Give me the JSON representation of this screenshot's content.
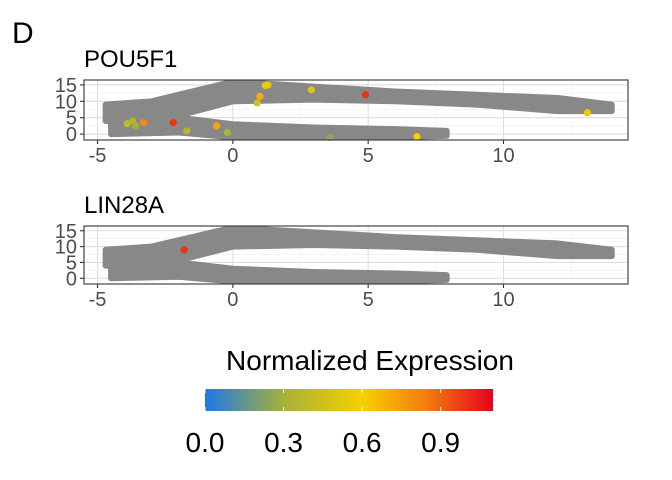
{
  "figure": {
    "panel_letter": "D"
  },
  "chart_data": [
    {
      "type": "scatter",
      "title": "POU5F1",
      "xlabel": "",
      "ylabel": "",
      "xlim": [
        -5.5,
        14.6
      ],
      "ylim": [
        -1.8,
        16.5
      ],
      "x_ticks": [
        -5,
        0,
        5,
        10
      ],
      "y_ticks": [
        0,
        5,
        10,
        15
      ],
      "x_tick_labels": [
        "-5",
        "0",
        "5",
        "10"
      ],
      "y_tick_labels": [
        "0",
        "5",
        "10",
        "15"
      ],
      "grid": true,
      "background_color": "#888888",
      "background_bands": [
        {
          "x": [
            -4.7,
            -3.0,
            0.0,
            3.0,
            6.0,
            9.0,
            12.0,
            14.0
          ],
          "y_low": [
            4.0,
            3.5,
            10.0,
            10.5,
            10.0,
            9.0,
            7.0,
            7.0
          ],
          "y_high": [
            9.0,
            10.0,
            16.0,
            14.5,
            13.0,
            12.0,
            11.0,
            9.0
          ]
        },
        {
          "x": [
            -4.5,
            -2.0,
            0.0,
            3.0,
            6.0,
            7.9
          ],
          "y_low": [
            0.0,
            0.5,
            -1.0,
            -1.2,
            -1.0,
            -0.5
          ],
          "y_high": [
            6.0,
            5.0,
            3.0,
            2.0,
            1.5,
            1.0
          ]
        }
      ],
      "points": [
        {
          "x": 1.3,
          "y": 15.0,
          "value": 0.65
        },
        {
          "x": 1.2,
          "y": 14.8,
          "value": 0.55
        },
        {
          "x": 2.9,
          "y": 13.5,
          "value": 0.5
        },
        {
          "x": 4.9,
          "y": 12.0,
          "value": 1.0
        },
        {
          "x": 1.0,
          "y": 11.5,
          "value": 0.7
        },
        {
          "x": 0.9,
          "y": 9.5,
          "value": 0.45
        },
        {
          "x": 13.1,
          "y": 6.5,
          "value": 0.55
        },
        {
          "x": -2.2,
          "y": 3.5,
          "value": 1.0
        },
        {
          "x": -3.3,
          "y": 3.5,
          "value": 0.8
        },
        {
          "x": -3.7,
          "y": 4.0,
          "value": 0.35
        },
        {
          "x": -3.6,
          "y": 2.5,
          "value": 0.3
        },
        {
          "x": -3.9,
          "y": 3.2,
          "value": 0.4
        },
        {
          "x": -0.6,
          "y": 2.5,
          "value": 0.72
        },
        {
          "x": -1.7,
          "y": 1.0,
          "value": 0.35
        },
        {
          "x": -0.2,
          "y": 0.5,
          "value": 0.32
        },
        {
          "x": 6.8,
          "y": -0.8,
          "value": 0.6
        },
        {
          "x": 3.6,
          "y": -1.0,
          "value": 0.25
        }
      ]
    },
    {
      "type": "scatter",
      "title": "LIN28A",
      "xlabel": "",
      "ylabel": "",
      "xlim": [
        -5.5,
        14.6
      ],
      "ylim": [
        -1.8,
        16.5
      ],
      "x_ticks": [
        -5,
        0,
        5,
        10
      ],
      "y_ticks": [
        0,
        5,
        10,
        15
      ],
      "x_tick_labels": [
        "-5",
        "0",
        "5",
        "10"
      ],
      "y_tick_labels": [
        "0",
        "5",
        "10",
        "15"
      ],
      "grid": true,
      "background_color": "#888888",
      "background_bands": [
        {
          "x": [
            -4.7,
            -3.0,
            0.0,
            3.0,
            6.0,
            9.0,
            12.0,
            14.0
          ],
          "y_low": [
            4.0,
            3.5,
            10.0,
            10.5,
            10.0,
            9.0,
            7.0,
            7.0
          ],
          "y_high": [
            9.0,
            10.0,
            16.0,
            14.5,
            13.0,
            12.0,
            11.0,
            9.0
          ]
        },
        {
          "x": [
            -4.5,
            -2.0,
            0.0,
            3.0,
            6.0,
            7.9
          ],
          "y_low": [
            0.0,
            0.5,
            -1.0,
            -1.2,
            -1.0,
            -0.5
          ],
          "y_high": [
            6.0,
            5.0,
            3.0,
            2.0,
            1.5,
            1.0
          ]
        }
      ],
      "points": [
        {
          "x": -1.8,
          "y": 9.0,
          "value": 1.0
        }
      ]
    }
  ],
  "legend": {
    "title": "Normalized Expression",
    "placement": "bottom",
    "range": [
      0.0,
      1.1
    ],
    "ticks": [
      0.0,
      0.3,
      0.6,
      0.9
    ],
    "tick_labels": [
      "0.0",
      "0.3",
      "0.6",
      "0.9"
    ],
    "stops": [
      {
        "value": 0.0,
        "color": "#1f78e8"
      },
      {
        "value": 0.3,
        "color": "#a6b03a"
      },
      {
        "value": 0.6,
        "color": "#f7d000"
      },
      {
        "value": 0.85,
        "color": "#f27a10"
      },
      {
        "value": 1.1,
        "color": "#e8001c"
      }
    ]
  }
}
